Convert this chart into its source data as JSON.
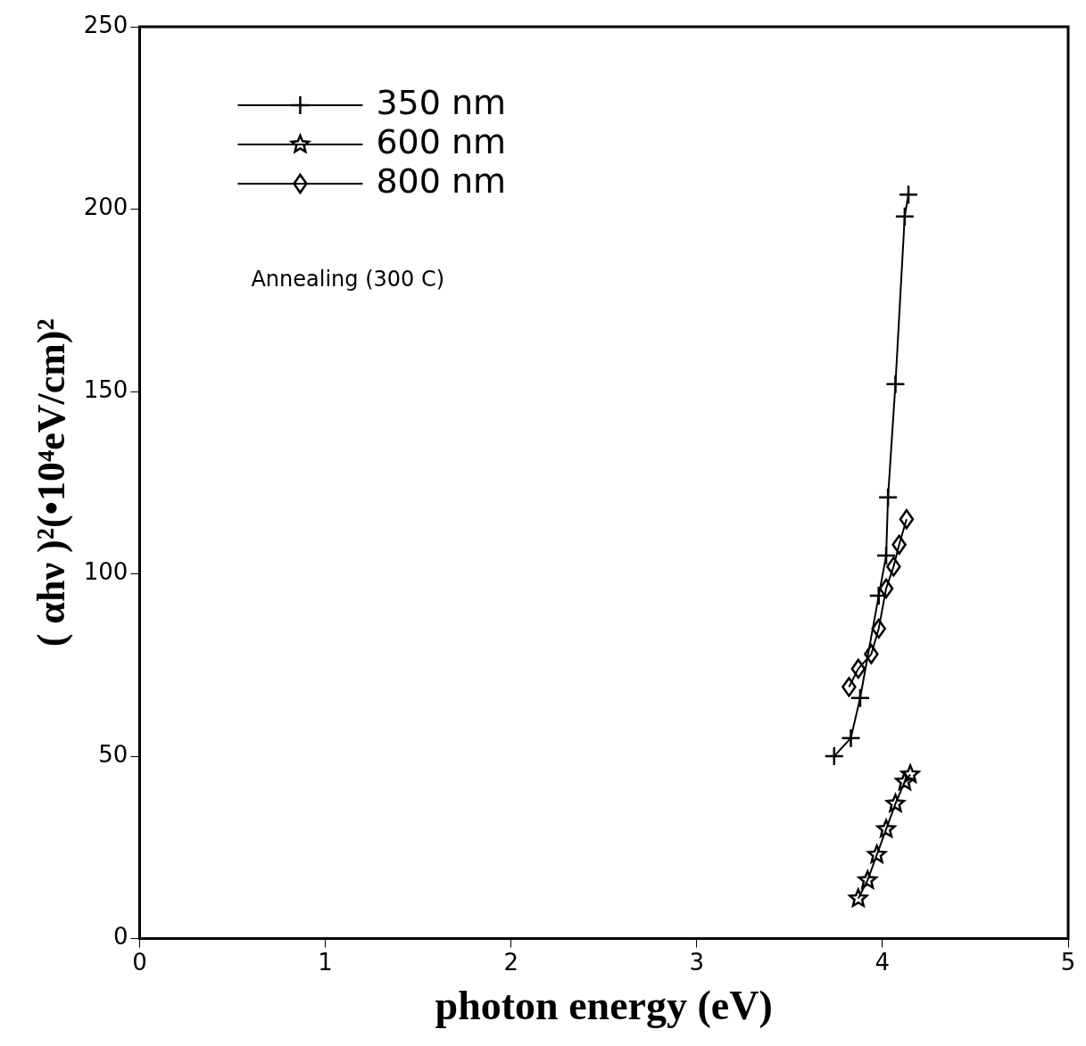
{
  "chart_data": {
    "type": "line",
    "xlabel": "photon energy (eV)",
    "ylabel": "( αhν )²(•10⁴eV/cm)²",
    "xlim": [
      0,
      5
    ],
    "xticks": [
      0,
      1,
      2,
      3,
      4,
      5
    ],
    "ylim": [
      0,
      250
    ],
    "yticks": [
      0,
      50,
      100,
      150,
      200,
      250
    ],
    "grid": false,
    "legend": "top left",
    "line_style": "solid",
    "annotations": [
      "Annealing (300 C)"
    ],
    "series": [
      {
        "name": "350 nm",
        "color": "#000000",
        "marker": "cross",
        "x": [
          3.74,
          3.83,
          3.88,
          3.98,
          4.02,
          4.03,
          4.07,
          4.12,
          4.14
        ],
        "values": [
          50,
          55,
          66,
          94,
          105,
          121,
          152,
          198,
          204
        ]
      },
      {
        "name": "600 nm",
        "color": "#000000",
        "marker": "star",
        "x": [
          3.87,
          3.92,
          3.97,
          4.02,
          4.07,
          4.12,
          4.15
        ],
        "values": [
          11,
          16,
          23,
          30,
          37,
          43,
          45
        ]
      },
      {
        "name": "800 nm",
        "color": "#000000",
        "marker": "diamond",
        "x": [
          3.82,
          3.87,
          3.94,
          3.98,
          4.02,
          4.06,
          4.09,
          4.13
        ],
        "values": [
          69,
          74,
          78,
          85,
          96,
          102,
          108,
          115
        ]
      }
    ]
  }
}
